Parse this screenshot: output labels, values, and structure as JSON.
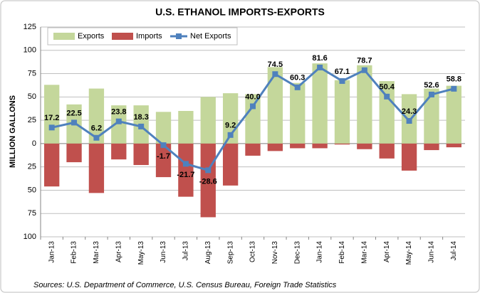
{
  "chart_data": {
    "type": "bar",
    "title": "U.S. ETHANOL IMPORTS-EXPORTS",
    "y_label": "MILLION GALLONS",
    "source": "Sources: U.S. Department of Commerce, U.S. Census Bureau, Foreign Trade Statistics",
    "categories": [
      "Jan-13",
      "Feb-13",
      "Mar-13",
      "Apr-13",
      "May-13",
      "Jun-13",
      "Jul-13",
      "Aug-13",
      "Sep-13",
      "Oct-13",
      "Nov-13",
      "Dec-13",
      "Jan-14",
      "Feb-14",
      "Mar-14",
      "Apr-14",
      "May-14",
      "Jun-14",
      "Jul-14"
    ],
    "series": [
      {
        "name": "Exports",
        "type": "bar",
        "color": "#c4d79b",
        "values": [
          63,
          42,
          59,
          41,
          41,
          34,
          35,
          50,
          54,
          53,
          82,
          65,
          86,
          68,
          84,
          67,
          53,
          59,
          62
        ]
      },
      {
        "name": "Imports",
        "type": "bar",
        "color": "#c0504d",
        "values": [
          -46,
          -20,
          -53,
          -17,
          -23,
          -36,
          -57,
          -79,
          -45,
          -13,
          -8,
          -5,
          -5,
          -1,
          -6,
          -16,
          -29,
          -7,
          -4
        ]
      },
      {
        "name": "Net Exports",
        "type": "line",
        "color": "#4f81bd",
        "values": [
          17.2,
          22.5,
          6.2,
          23.8,
          18.3,
          -1.7,
          -21.7,
          -28.6,
          9.2,
          40.0,
          74.5,
          60.3,
          81.6,
          67.1,
          78.7,
          50.4,
          24.3,
          52.6,
          58.8
        ],
        "value_labels": [
          "17.2",
          "22.5",
          "6.2",
          "23.8",
          "18.3",
          "-1.7",
          "-21.7",
          "-28.6",
          "9.2",
          "40.0",
          "74.5",
          "60.3",
          "81.6",
          "67.1",
          "78.7",
          "50.4",
          "24.3",
          "52.6",
          "58.8"
        ]
      }
    ],
    "ylim": [
      -100,
      125
    ],
    "yticks": [
      {
        "value": -100,
        "label": "100"
      },
      {
        "value": -75,
        "label": "75"
      },
      {
        "value": -50,
        "label": "50"
      },
      {
        "value": -25,
        "label": "25"
      },
      0,
      25,
      50,
      75,
      100,
      125
    ],
    "grid": true,
    "legend": "top-left"
  }
}
